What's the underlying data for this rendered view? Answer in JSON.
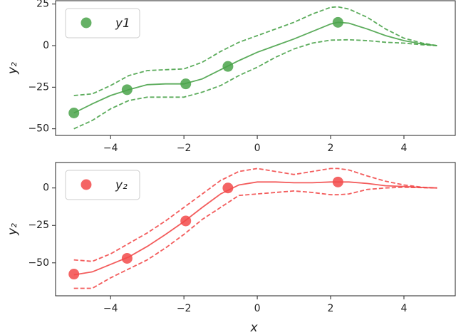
{
  "chart_data": [
    {
      "type": "line",
      "ylabel": "y₂",
      "color": "#4aa34a",
      "xlim": [
        -5.5,
        5.4
      ],
      "ylim": [
        -54,
        27
      ],
      "xticks": [
        {
          "value": -4,
          "label": "−4"
        },
        {
          "value": -2,
          "label": "−2"
        },
        0,
        2,
        4
      ],
      "yticks": [
        25,
        0,
        {
          "value": -25,
          "label": "−25"
        },
        {
          "value": -50,
          "label": "−50"
        }
      ],
      "legend": "upper left",
      "x": [
        -5,
        -4.5,
        -4,
        -3.5,
        -3,
        -2.5,
        -2,
        -1.5,
        -1,
        -0.5,
        0,
        0.5,
        1,
        1.5,
        2,
        2.2,
        2.5,
        3,
        3.5,
        4,
        4.5,
        4.9
      ],
      "series": [
        {
          "style": "solid",
          "values": [
            -40.5,
            -35,
            -30,
            -26.5,
            -23.5,
            -23,
            -23,
            -20,
            -14.5,
            -9,
            -4,
            0,
            4,
            8.5,
            13,
            14,
            13.5,
            10,
            6,
            3,
            1,
            0
          ]
        },
        {
          "style": "dashed",
          "values": [
            -30,
            -29,
            -24,
            -18,
            -15,
            -14.5,
            -14,
            -10,
            -3.5,
            2,
            6,
            10,
            14,
            19,
            23,
            23.3,
            22,
            17,
            10,
            4.5,
            1.5,
            0
          ]
        },
        {
          "style": "dashed",
          "values": [
            -50,
            -45,
            -38,
            -33,
            -31,
            -31,
            -31,
            -28,
            -24,
            -18,
            -13,
            -7,
            -2,
            1.5,
            3.3,
            3.4,
            3.5,
            3,
            2,
            1.5,
            0.5,
            0
          ]
        }
      ],
      "points": {
        "name": "y1",
        "x": [
          -5,
          -3.55,
          -1.95,
          -0.8,
          2.2
        ],
        "values": [
          -40.5,
          -26.5,
          -23,
          -12.5,
          14
        ]
      }
    },
    {
      "type": "line",
      "ylabel": "y₂",
      "xlabel": "x",
      "color": "#f24a4a",
      "xlim": [
        -5.5,
        5.4
      ],
      "ylim": [
        -72,
        17
      ],
      "xticks": [
        {
          "value": -4,
          "label": "−4"
        },
        {
          "value": -2,
          "label": "−2"
        },
        0,
        2,
        4
      ],
      "yticks": [
        0,
        {
          "value": -25,
          "label": "−25"
        },
        {
          "value": -50,
          "label": "−50"
        }
      ],
      "legend": "upper left",
      "x": [
        -5,
        -4.5,
        -4,
        -3.5,
        -3,
        -2.5,
        -2,
        -1.5,
        -1,
        -0.5,
        0,
        0.5,
        1,
        1.5,
        2,
        2.2,
        2.5,
        3,
        3.5,
        4,
        4.5,
        4.9
      ],
      "series": [
        {
          "style": "solid",
          "values": [
            -58,
            -56,
            -51,
            -46,
            -39,
            -31,
            -22.5,
            -13,
            -4,
            2,
            4,
            4,
            3.5,
            3.5,
            4,
            4,
            4,
            3,
            1.5,
            1,
            0.3,
            0
          ]
        },
        {
          "style": "dashed",
          "values": [
            -48,
            -49,
            -44,
            -37,
            -30,
            -22,
            -13,
            -4,
            5,
            11,
            13,
            11,
            9,
            11,
            13,
            13,
            12,
            8,
            4.5,
            2,
            0.5,
            0
          ]
        },
        {
          "style": "dashed",
          "values": [
            -67,
            -67,
            -60,
            -54,
            -48,
            -40,
            -31,
            -21,
            -13,
            -5,
            -4,
            -3,
            -2,
            -3,
            -4.5,
            -4.5,
            -4,
            -1,
            0,
            0.5,
            0.2,
            0
          ]
        }
      ],
      "points": {
        "name": "y₂",
        "x": [
          -5,
          -3.55,
          -1.95,
          -0.8,
          2.2
        ],
        "values": [
          -57.5,
          -47,
          -22,
          0,
          4
        ]
      }
    }
  ]
}
